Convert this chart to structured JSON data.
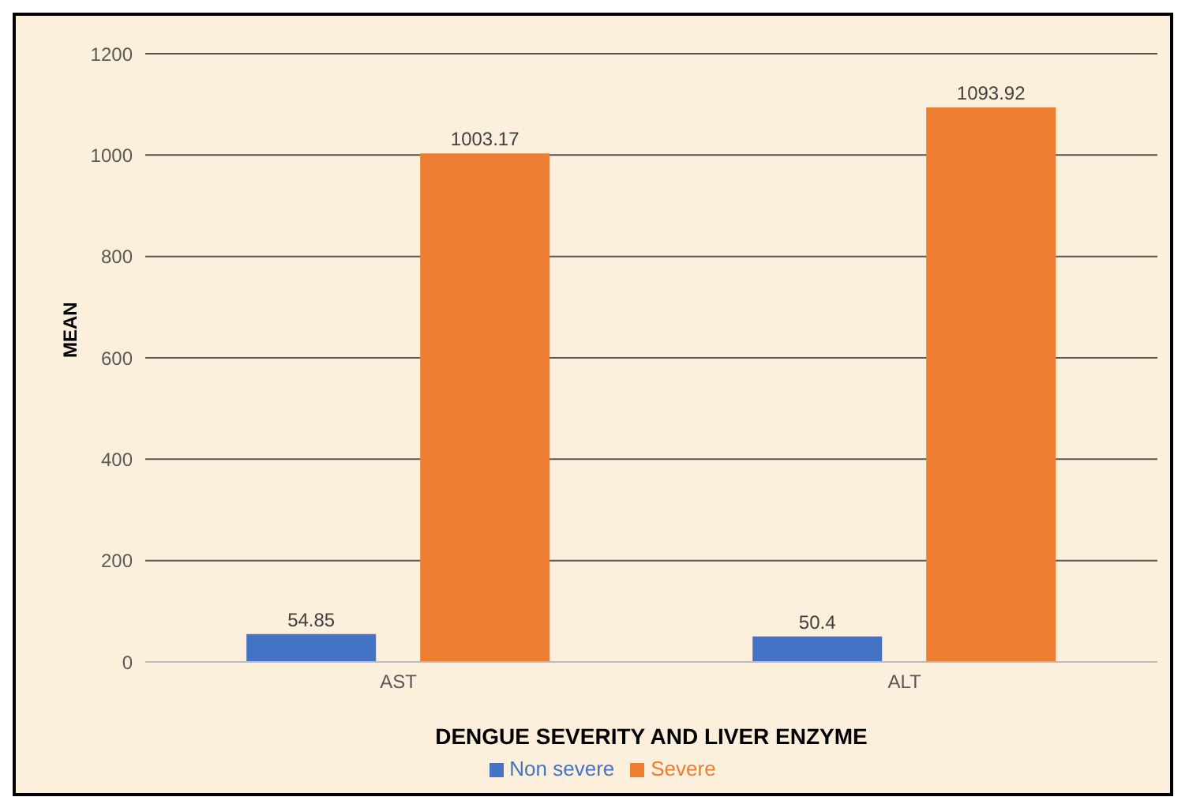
{
  "chart_data": {
    "type": "bar",
    "xlabel": "DENGUE SEVERITY AND LIVER ENZYME",
    "ylabel": "MEAN",
    "categories": [
      "AST",
      "ALT"
    ],
    "series": [
      {
        "name": "Non severe",
        "color": "#4472c4",
        "values": [
          54.85,
          50.4
        ]
      },
      {
        "name": "Severe",
        "color": "#ed7d31",
        "values": [
          1003.17,
          1093.92
        ]
      }
    ],
    "ylim": [
      0,
      1200
    ],
    "yticks": [
      0,
      200,
      400,
      600,
      800,
      1000,
      1200
    ],
    "grid": "y",
    "legend": "bottom",
    "data_labels": true
  }
}
